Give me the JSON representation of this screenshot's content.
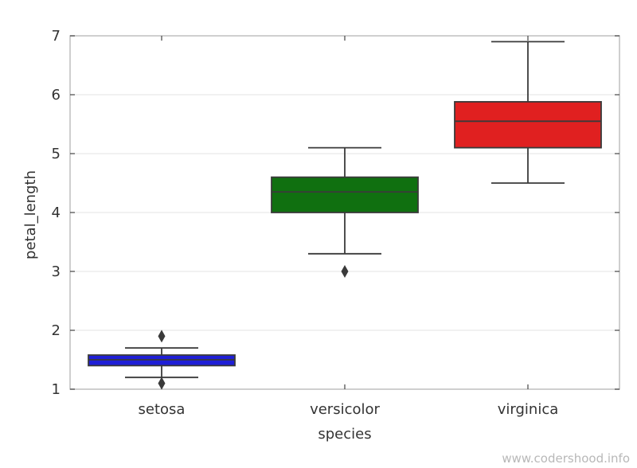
{
  "chart_data": {
    "type": "box",
    "xlabel": "species",
    "ylabel": "petal_length",
    "ylim": [
      1,
      7
    ],
    "yticks": [
      "1",
      "2",
      "3",
      "4",
      "5",
      "6",
      "7"
    ],
    "grid": true,
    "categories": [
      "setosa",
      "versicolor",
      "virginica"
    ],
    "boxes": [
      {
        "category": "setosa",
        "color": "#1f1fd6",
        "whisker_low": 1.2,
        "q1": 1.4,
        "median": 1.5,
        "q3": 1.58,
        "whisker_high": 1.7,
        "outliers": [
          1.9,
          1.1
        ]
      },
      {
        "category": "versicolor",
        "color": "#107010",
        "whisker_low": 3.3,
        "q1": 4.0,
        "median": 4.35,
        "q3": 4.6,
        "whisker_high": 5.1,
        "outliers": [
          3.0
        ]
      },
      {
        "category": "virginica",
        "color": "#e02020",
        "whisker_low": 4.5,
        "q1": 5.1,
        "median": 5.55,
        "q3": 5.88,
        "whisker_high": 6.9,
        "outliers": []
      }
    ]
  },
  "watermark": "www.codershood.info"
}
